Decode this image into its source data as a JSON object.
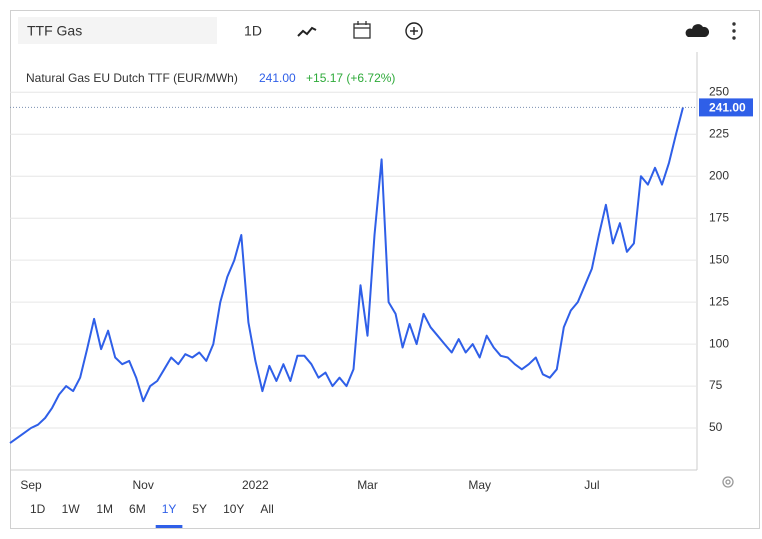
{
  "chart_data": {
    "type": "line",
    "symbol": "TTF Gas",
    "interval": "1D",
    "title": "Natural Gas EU Dutch TTF (EUR/MWh)",
    "last_price": {
      "value": 241,
      "label": "241.00"
    },
    "change": "+15.17 (+6.72%)",
    "categories": [
      null,
      null,
      null,
      "Sep",
      null,
      null,
      null,
      null,
      null,
      null,
      null,
      null,
      null,
      null,
      null,
      null,
      null,
      null,
      null,
      "Nov",
      null,
      null,
      null,
      null,
      null,
      null,
      null,
      null,
      null,
      null,
      null,
      null,
      null,
      null,
      null,
      "2022",
      null,
      null,
      null,
      null,
      null,
      null,
      null,
      null,
      null,
      null,
      null,
      null,
      null,
      null,
      null,
      "Mar",
      null,
      null,
      null,
      null,
      null,
      null,
      null,
      null,
      null,
      null,
      null,
      null,
      null,
      null,
      null,
      "May",
      null,
      null,
      null,
      null,
      null,
      null,
      null,
      null,
      null,
      null,
      null,
      null,
      null,
      null,
      null,
      "Jul",
      null,
      null,
      null,
      null,
      null,
      null,
      null,
      null,
      null,
      null,
      null,
      null,
      null
    ],
    "values": [
      41,
      44,
      47,
      50,
      52,
      56,
      62,
      70,
      75,
      72,
      80,
      97,
      115,
      97,
      108,
      92,
      88,
      90,
      80,
      66,
      75,
      78,
      85,
      92,
      88,
      94,
      92,
      95,
      90,
      100,
      125,
      140,
      150,
      165,
      113,
      90,
      72,
      87,
      78,
      88,
      78,
      93,
      93,
      88,
      80,
      83,
      75,
      80,
      75,
      85,
      135,
      105,
      165,
      210,
      125,
      118,
      98,
      112,
      100,
      118,
      110,
      105,
      100,
      95,
      103,
      95,
      100,
      92,
      105,
      98,
      93,
      92,
      88,
      85,
      88,
      92,
      82,
      80,
      85,
      110,
      120,
      125,
      135,
      145,
      165,
      183,
      160,
      172,
      155,
      160,
      200,
      195,
      205,
      195,
      208,
      225,
      241
    ],
    "color": "#2f5fe8",
    "ylim": [
      25,
      274
    ],
    "yticks": [
      50,
      75,
      100,
      125,
      150,
      175,
      200,
      225,
      250
    ],
    "grid": true,
    "ranges": [
      "1D",
      "1W",
      "1M",
      "6M",
      "1Y",
      "5Y",
      "10Y",
      "All"
    ],
    "selected_range": 4
  }
}
